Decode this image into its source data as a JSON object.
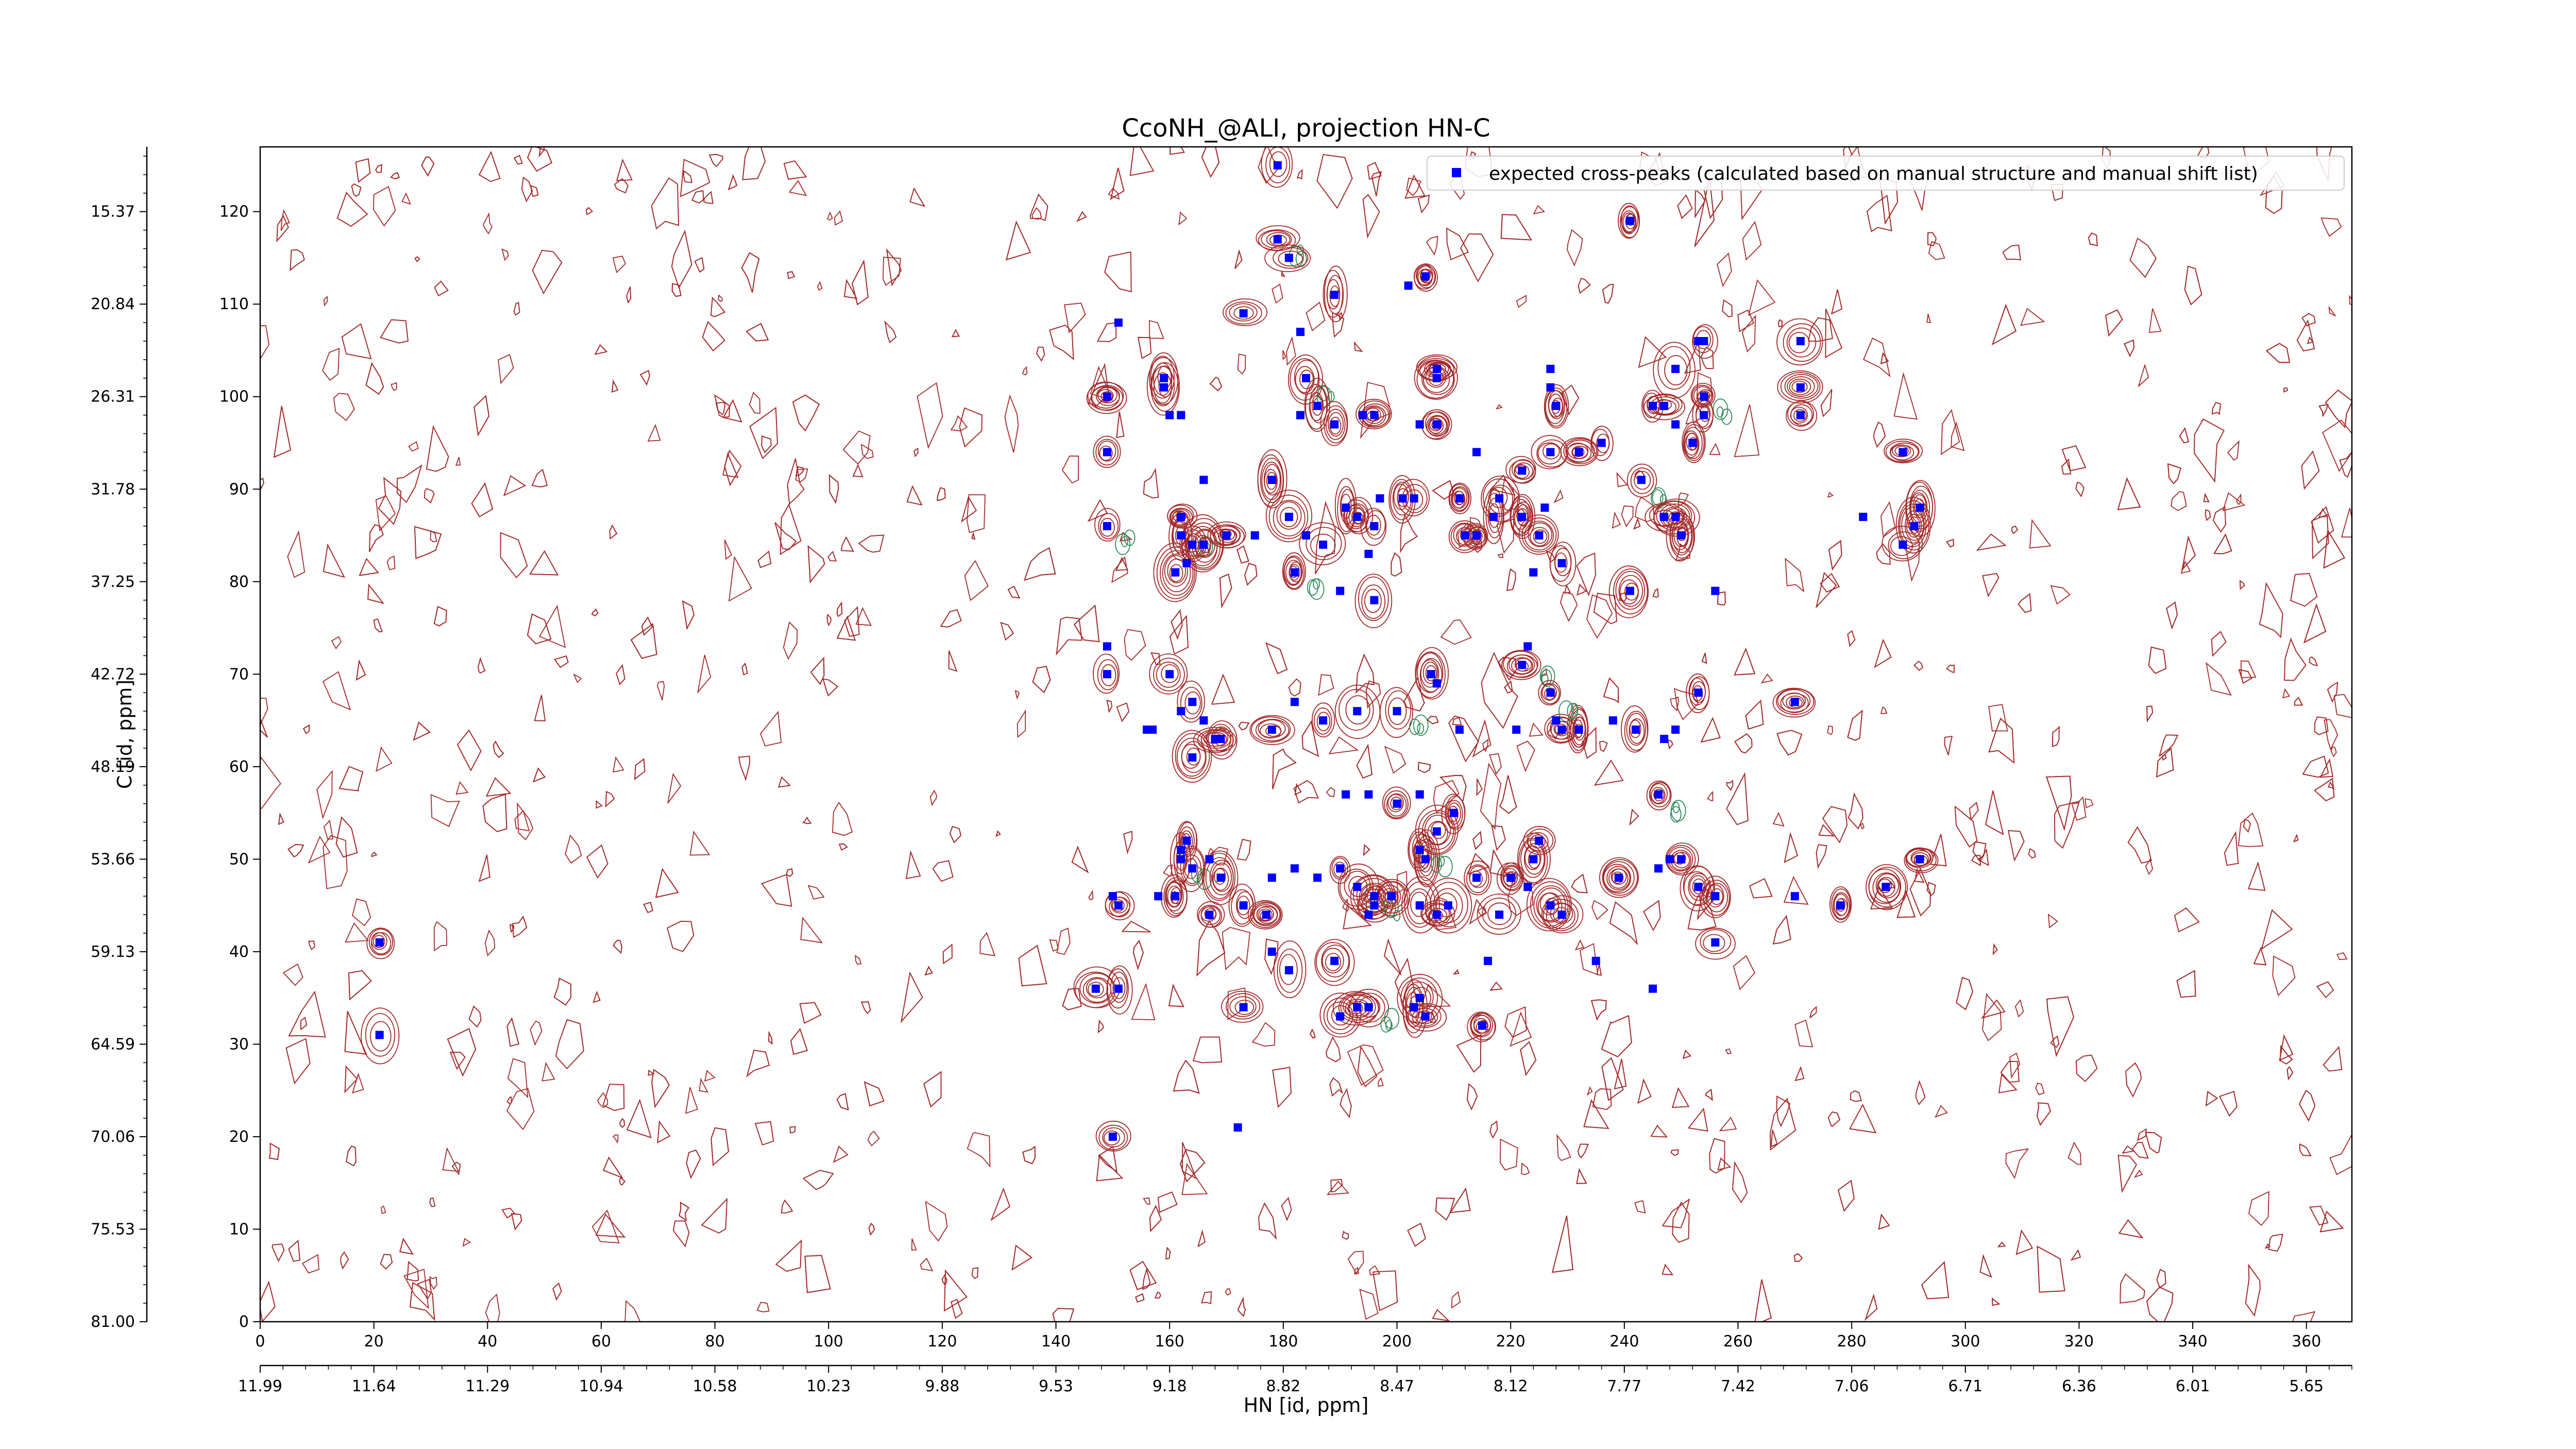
{
  "figure": {
    "title": "CcoNH_@ALI, projection HN-C",
    "xlabel_bottom": "HN [id, ppm]",
    "ylabel_left": "C [id, ppm]"
  },
  "chart_data": {
    "type": "scatter",
    "title": "CcoNH_@ALI, projection HN-C",
    "x_axis_index": {
      "range": [
        0,
        368
      ],
      "ticks": [
        0,
        20,
        40,
        60,
        80,
        100,
        120,
        140,
        160,
        180,
        200,
        220,
        240,
        260,
        280,
        300,
        320,
        340,
        360
      ]
    },
    "x_axis_ppm": {
      "label": "HN [id, ppm]",
      "tick_labels": [
        "11.99",
        "11.64",
        "11.29",
        "10.94",
        "10.58",
        "10.23",
        "9.88",
        "9.53",
        "9.18",
        "8.82",
        "8.47",
        "8.12",
        "7.77",
        "7.42",
        "7.06",
        "6.71",
        "6.36",
        "6.01",
        "5.65"
      ],
      "tick_positions_index": [
        0,
        20,
        40,
        60,
        80,
        100,
        120,
        140,
        160,
        180,
        200,
        220,
        240,
        260,
        280,
        300,
        320,
        340,
        360
      ]
    },
    "y_axis_index": {
      "range": [
        0,
        127
      ],
      "ticks": [
        0,
        10,
        20,
        30,
        40,
        50,
        60,
        70,
        80,
        90,
        100,
        110,
        120
      ]
    },
    "y_axis_ppm": {
      "label": "C [id, ppm]",
      "tick_labels": [
        "81.00",
        "75.53",
        "70.06",
        "64.59",
        "59.13",
        "53.66",
        "48.19",
        "42.72",
        "37.25",
        "31.78",
        "26.31",
        "20.84",
        "15.37"
      ],
      "tick_positions_index": [
        0,
        10,
        20,
        30,
        40,
        50,
        60,
        70,
        80,
        90,
        100,
        110,
        120
      ]
    },
    "legend": {
      "position": "top-right",
      "label": "expected cross-peaks (calculated based on manual structure and manual shift list)"
    },
    "colors": {
      "marker": "#0000ff",
      "positive_contour": "#a52a2a",
      "negative_contour": "#2e8b57"
    },
    "series": [
      {
        "name": "expected cross-peaks (calculated based on manual structure and manual shift list)",
        "points": [
          [
            179,
            125
          ],
          [
            179,
            117
          ],
          [
            181,
            115
          ],
          [
            241,
            119
          ],
          [
            189,
            111
          ],
          [
            202,
            112
          ],
          [
            205,
            113
          ],
          [
            149,
            100
          ],
          [
            149,
            94
          ],
          [
            151,
            108
          ],
          [
            159,
            102
          ],
          [
            159,
            101
          ],
          [
            160,
            98
          ],
          [
            162,
            98
          ],
          [
            173,
            109
          ],
          [
            183,
            107
          ],
          [
            184,
            102
          ],
          [
            183,
            98
          ],
          [
            186,
            99
          ],
          [
            189,
            97
          ],
          [
            194,
            98
          ],
          [
            196,
            98
          ],
          [
            207,
            103
          ],
          [
            207,
            102
          ],
          [
            204,
            97
          ],
          [
            207,
            97
          ],
          [
            227,
            103
          ],
          [
            227,
            101
          ],
          [
            222,
            92
          ],
          [
            222,
            87
          ],
          [
            226,
            88
          ],
          [
            227,
            94
          ],
          [
            232,
            94
          ],
          [
            236,
            95
          ],
          [
            228,
            99
          ],
          [
            243,
            91
          ],
          [
            245,
            99
          ],
          [
            247,
            99
          ],
          [
            249,
            97
          ],
          [
            252,
            95
          ],
          [
            249,
            103
          ],
          [
            254,
            100
          ],
          [
            254,
            98
          ],
          [
            254,
            106
          ],
          [
            253,
            106
          ],
          [
            271,
            106
          ],
          [
            271,
            101
          ],
          [
            271,
            98
          ],
          [
            149,
            86
          ],
          [
            162,
            87
          ],
          [
            162,
            85
          ],
          [
            164,
            84
          ],
          [
            166,
            84
          ],
          [
            163,
            82
          ],
          [
            161,
            81
          ],
          [
            166,
            91
          ],
          [
            170,
            85
          ],
          [
            175,
            85
          ],
          [
            178,
            91
          ],
          [
            181,
            87
          ],
          [
            184,
            85
          ],
          [
            187,
            84
          ],
          [
            191,
            88
          ],
          [
            193,
            87
          ],
          [
            196,
            86
          ],
          [
            195,
            83
          ],
          [
            197,
            89
          ],
          [
            201,
            89
          ],
          [
            203,
            89
          ],
          [
            211,
            89
          ],
          [
            212,
            85
          ],
          [
            214,
            94
          ],
          [
            217,
            87
          ],
          [
            218,
            89
          ],
          [
            214,
            85
          ],
          [
            225,
            85
          ],
          [
            224,
            81
          ],
          [
            229,
            82
          ],
          [
            241,
            79
          ],
          [
            247,
            87
          ],
          [
            249,
            87
          ],
          [
            250,
            85
          ],
          [
            256,
            79
          ],
          [
            282,
            87
          ],
          [
            289,
            84
          ],
          [
            291,
            86
          ],
          [
            292,
            88
          ],
          [
            289,
            94
          ],
          [
            190,
            79
          ],
          [
            182,
            81
          ],
          [
            196,
            78
          ],
          [
            149,
            73
          ],
          [
            149,
            70
          ],
          [
            160,
            70
          ],
          [
            162,
            66
          ],
          [
            164,
            67
          ],
          [
            166,
            65
          ],
          [
            168,
            63
          ],
          [
            156,
            64
          ],
          [
            157,
            64
          ],
          [
            164,
            61
          ],
          [
            169,
            63
          ],
          [
            178,
            64
          ],
          [
            182,
            67
          ],
          [
            187,
            65
          ],
          [
            193,
            66
          ],
          [
            200,
            66
          ],
          [
            206,
            70
          ],
          [
            207,
            69
          ],
          [
            211,
            64
          ],
          [
            221,
            64
          ],
          [
            222,
            71
          ],
          [
            223,
            73
          ],
          [
            229,
            64
          ],
          [
            232,
            64
          ],
          [
            227,
            68
          ],
          [
            228,
            65
          ],
          [
            238,
            65
          ],
          [
            242,
            64
          ],
          [
            247,
            63
          ],
          [
            249,
            64
          ],
          [
            253,
            68
          ],
          [
            270,
            67
          ],
          [
            191,
            57
          ],
          [
            195,
            57
          ],
          [
            200,
            56
          ],
          [
            204,
            57
          ],
          [
            210,
            55
          ],
          [
            207,
            53
          ],
          [
            204,
            51
          ],
          [
            205,
            50
          ],
          [
            167,
            50
          ],
          [
            164,
            49
          ],
          [
            162,
            51
          ],
          [
            162,
            50
          ],
          [
            163,
            52
          ],
          [
            161,
            46
          ],
          [
            158,
            46
          ],
          [
            151,
            45
          ],
          [
            150,
            46
          ],
          [
            167,
            44
          ],
          [
            169,
            48
          ],
          [
            173,
            45
          ],
          [
            177,
            44
          ],
          [
            178,
            48
          ],
          [
            182,
            49
          ],
          [
            186,
            48
          ],
          [
            190,
            49
          ],
          [
            193,
            47
          ],
          [
            196,
            45
          ],
          [
            195,
            44
          ],
          [
            196,
            46
          ],
          [
            199,
            46
          ],
          [
            204,
            45
          ],
          [
            207,
            44
          ],
          [
            209,
            45
          ],
          [
            214,
            48
          ],
          [
            218,
            44
          ],
          [
            220,
            48
          ],
          [
            223,
            47
          ],
          [
            224,
            50
          ],
          [
            225,
            52
          ],
          [
            227,
            45
          ],
          [
            229,
            44
          ],
          [
            239,
            48
          ],
          [
            246,
            49
          ],
          [
            248,
            50
          ],
          [
            250,
            50
          ],
          [
            253,
            47
          ],
          [
            256,
            46
          ],
          [
            270,
            46
          ],
          [
            278,
            45
          ],
          [
            286,
            47
          ],
          [
            292,
            50
          ],
          [
            246,
            57
          ],
          [
            256,
            41
          ],
          [
            216,
            39
          ],
          [
            235,
            39
          ],
          [
            178,
            40
          ],
          [
            181,
            38
          ],
          [
            189,
            39
          ],
          [
            195,
            34
          ],
          [
            203,
            34
          ],
          [
            204,
            35
          ],
          [
            205,
            33
          ],
          [
            215,
            32
          ],
          [
            245,
            36
          ],
          [
            147,
            36
          ],
          [
            151,
            36
          ],
          [
            173,
            34
          ],
          [
            190,
            33
          ],
          [
            193,
            34
          ],
          [
            21,
            41
          ],
          [
            21,
            31
          ],
          [
            150,
            20
          ],
          [
            172,
            21
          ]
        ]
      }
    ]
  }
}
